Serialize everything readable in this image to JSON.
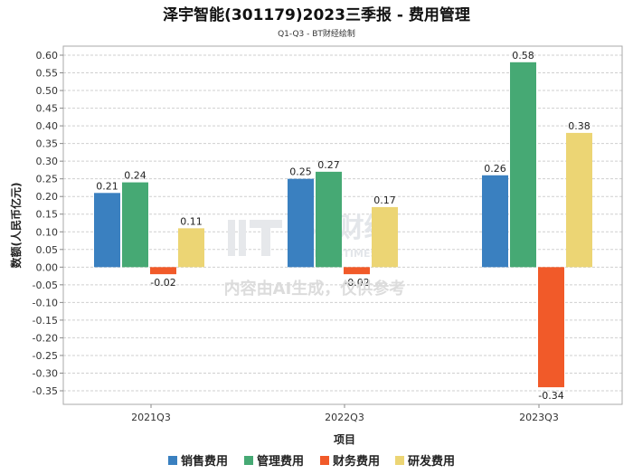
{
  "chart_data": {
    "type": "bar",
    "title": "泽宇智能(301179)2023三季报 - 费用管理",
    "subtitle": "Q1-Q3 - BT财经绘制",
    "xlabel": "项目",
    "ylabel": "数额(人民币亿元)",
    "categories": [
      "2021Q3",
      "2022Q3",
      "2023Q3"
    ],
    "ylim": [
      -0.4,
      0.6
    ],
    "ytick_step": 0.05,
    "grid": true,
    "legend_position": "bottom",
    "series": [
      {
        "name": "销售费用",
        "color": "#3a80c0",
        "values": [
          0.21,
          0.25,
          0.26
        ],
        "labels": [
          "0.21",
          "0.25",
          "0.26"
        ]
      },
      {
        "name": "管理费用",
        "color": "#46a974",
        "values": [
          0.24,
          0.27,
          0.58
        ],
        "labels": [
          "0.24",
          "0.27",
          "0.58"
        ]
      },
      {
        "name": "财务费用",
        "color": "#f15a29",
        "values": [
          -0.02,
          -0.02,
          -0.34
        ],
        "labels": [
          "-0.02",
          "-0.02",
          "-0.34"
        ]
      },
      {
        "name": "研发费用",
        "color": "#ecd574",
        "values": [
          0.11,
          0.17,
          0.38
        ],
        "labels": [
          "0.11",
          "0.17",
          "0.38"
        ]
      }
    ]
  },
  "watermark": {
    "logo_text": "BT财经",
    "logo_subtext": "BUSINESSTIMES",
    "notice": "内容由AI生成，仅供参考"
  }
}
